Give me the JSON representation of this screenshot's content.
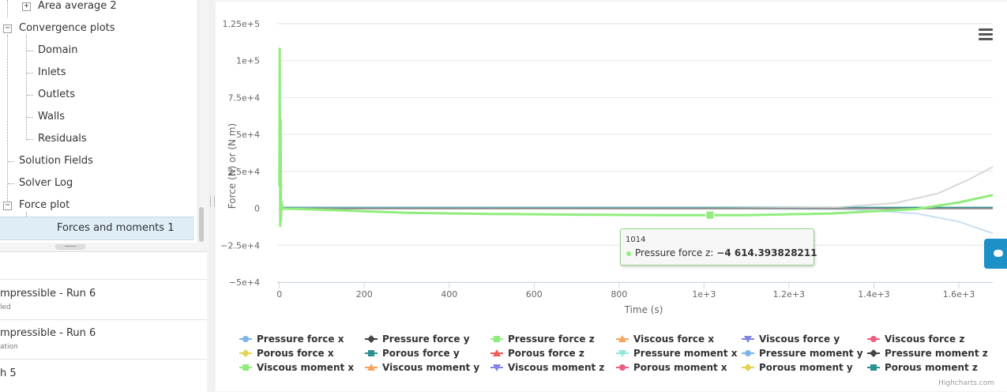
{
  "tree": {
    "items": [
      {
        "label": "Area average 2",
        "toggle": "+"
      },
      {
        "label": "Convergence plots",
        "toggle": "−"
      },
      {
        "label": "Domain"
      },
      {
        "label": "Inlets"
      },
      {
        "label": "Outlets"
      },
      {
        "label": "Walls"
      },
      {
        "label": "Residuals"
      },
      {
        "label": "Solution Fields"
      },
      {
        "label": "Solver Log"
      },
      {
        "label": "Force plot",
        "toggle": "−"
      },
      {
        "label": "Forces and moments 1",
        "selected": true
      }
    ]
  },
  "runs": [
    {
      "title": "mpressible - Run 6",
      "subtitle": "led"
    },
    {
      "title": "mpressible - Run 6",
      "subtitle": "ation"
    },
    {
      "title": "h 5",
      "subtitle": ""
    }
  ],
  "chart_data": {
    "type": "line",
    "xlabel": "Time (s)",
    "ylabel": "Force (N) or (N m)",
    "xlim": [
      -5,
      1680
    ],
    "ylim": [
      -50000,
      125000
    ],
    "x_ticks": [
      0,
      200,
      400,
      600,
      800,
      1000,
      1200,
      1400,
      1600
    ],
    "x_tick_labels": [
      "0",
      "200",
      "400",
      "600",
      "800",
      "1e+3",
      "1.2e+3",
      "1.4e+3",
      "1.6e+3"
    ],
    "y_ticks": [
      125000,
      100000,
      75000,
      50000,
      25000,
      0,
      -25000,
      -50000
    ],
    "y_tick_labels": [
      "1.25e+5",
      "1e+5",
      "7.5e+4",
      "5e+4",
      "2.5e+4",
      "0",
      "−2.5e+4",
      "−5e+4"
    ],
    "grid": true,
    "legend_position": "bottom",
    "series": [
      {
        "name": "Pressure force z",
        "color": "#90ed7d",
        "x": [
          0,
          1,
          2,
          3,
          4,
          5,
          8,
          20,
          100,
          300,
          500,
          700,
          900,
          1014,
          1100,
          1300,
          1500,
          1600,
          1680
        ],
        "y": [
          15000,
          108000,
          -12000,
          60000,
          -8000,
          4000,
          -300,
          -300,
          -1000,
          -3000,
          -3800,
          -4300,
          -4600,
          -4614,
          -4600,
          -3500,
          -500,
          4000,
          9000
        ]
      },
      {
        "name": "Pressure force y",
        "color": "#434348",
        "x": [
          0,
          200,
          400,
          600,
          800,
          1000,
          1200,
          1400,
          1600,
          1680
        ],
        "y": [
          0,
          0,
          0,
          0,
          0,
          0,
          0,
          0,
          0,
          0
        ]
      },
      {
        "name": "Porous force y",
        "color": "#2b908f",
        "x": [
          0,
          400,
          800,
          1200,
          1680
        ],
        "y": [
          500,
          500,
          500,
          500,
          500
        ]
      },
      {
        "name": "Pressure force x",
        "color": "#d8d8d8",
        "x": [
          0,
          1000,
          1300,
          1450,
          1550,
          1620,
          1680
        ],
        "y": [
          0,
          0,
          500,
          3500,
          10000,
          19000,
          28000
        ]
      },
      {
        "name": "Viscous force x",
        "color": "#c9dff0",
        "x": [
          0,
          1000,
          1350,
          1500,
          1600,
          1680
        ],
        "y": [
          0,
          0,
          -800,
          -3500,
          -9000,
          -17000
        ]
      },
      {
        "name": "Pressure moment z",
        "color": "#909090",
        "x": [
          0,
          400,
          800,
          1200,
          1680
        ],
        "y": [
          -200,
          -200,
          -200,
          -200,
          -200
        ]
      }
    ],
    "tooltip": {
      "x": "1014",
      "series": "Pressure force z",
      "label": "Pressure force z:",
      "value": "−4 614.393828211"
    }
  },
  "legend": [
    {
      "label": "Pressure force x",
      "color": "#7cb5ec",
      "symbol": "circle"
    },
    {
      "label": "Pressure force y",
      "color": "#434348",
      "symbol": "diamond"
    },
    {
      "label": "Pressure force z",
      "color": "#90ed7d",
      "symbol": "square"
    },
    {
      "label": "Viscous force x",
      "color": "#f7a35c",
      "symbol": "triangle"
    },
    {
      "label": "Viscous force y",
      "color": "#8085e9",
      "symbol": "triangle-down"
    },
    {
      "label": "Viscous force z",
      "color": "#f15c80",
      "symbol": "circle"
    },
    {
      "label": "Porous force x",
      "color": "#e4d354",
      "symbol": "diamond"
    },
    {
      "label": "Porous force y",
      "color": "#2b908f",
      "symbol": "square"
    },
    {
      "label": "Porous force z",
      "color": "#f45b5b",
      "symbol": "triangle"
    },
    {
      "label": "Pressure moment x",
      "color": "#91e8e1",
      "symbol": "triangle-down"
    },
    {
      "label": "Pressure moment y",
      "color": "#7cb5ec",
      "symbol": "circle"
    },
    {
      "label": "Pressure moment z",
      "color": "#434348",
      "symbol": "diamond"
    },
    {
      "label": "Viscous moment x",
      "color": "#90ed7d",
      "symbol": "square"
    },
    {
      "label": "Viscous moment y",
      "color": "#f7a35c",
      "symbol": "triangle"
    },
    {
      "label": "Viscous moment z",
      "color": "#8085e9",
      "symbol": "triangle-down"
    },
    {
      "label": "Porous moment x",
      "color": "#f15c80",
      "symbol": "circle"
    },
    {
      "label": "Porous moment y",
      "color": "#e4d354",
      "symbol": "diamond"
    },
    {
      "label": "Porous moment z",
      "color": "#2b908f",
      "symbol": "square"
    }
  ],
  "credits": "Highcharts.com",
  "icons": {
    "chart_menu": "hamburger-menu-icon",
    "chat": "chat-bubble-icon"
  }
}
